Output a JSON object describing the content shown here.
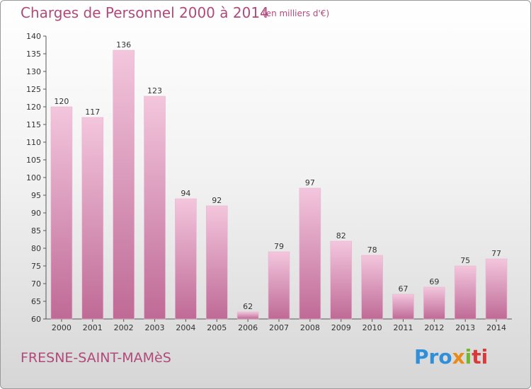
{
  "header": {
    "title": "Charges de Personnel 2000 à 2014",
    "unit": "(en milliers d'€)"
  },
  "footer": {
    "place": "FRESNE-SAINT-MAMèS",
    "logo_parts": [
      "Pro",
      "x",
      "i",
      "ti"
    ]
  },
  "colors": {
    "bar_light": "#f3c6dd",
    "bar_dark": "#bf6a96",
    "text_accent": "#b04a7a"
  },
  "chart_data": {
    "type": "bar",
    "categories": [
      "2000",
      "2001",
      "2002",
      "2003",
      "2004",
      "2005",
      "2006",
      "2007",
      "2008",
      "2009",
      "2010",
      "2011",
      "2012",
      "2013",
      "2014"
    ],
    "values": [
      120,
      117,
      136,
      123,
      94,
      92,
      62,
      79,
      97,
      82,
      78,
      67,
      69,
      75,
      77
    ],
    "title": "Charges de Personnel 2000 à 2014",
    "xlabel": "",
    "ylabel": "",
    "ylim": [
      60,
      140
    ],
    "yticks": [
      60,
      65,
      70,
      75,
      80,
      85,
      90,
      95,
      100,
      105,
      110,
      115,
      120,
      125,
      130,
      135,
      140
    ],
    "grid": false,
    "data_labels": true
  }
}
